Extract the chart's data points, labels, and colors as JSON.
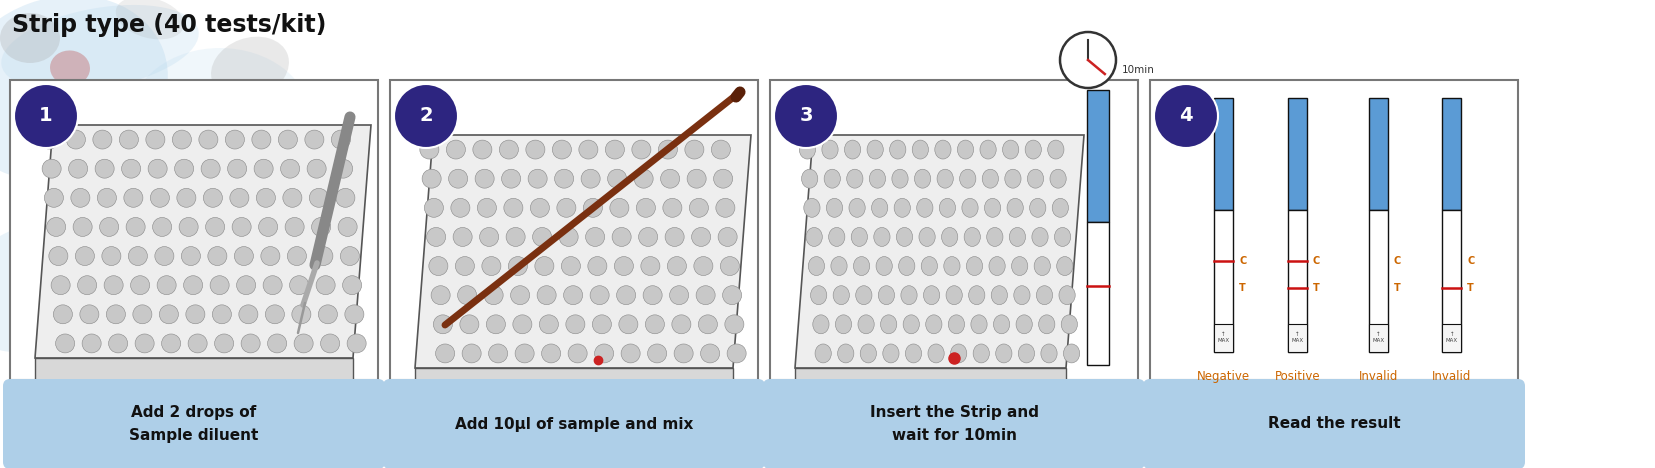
{
  "title": "Strip type (40 tests/kit)",
  "title_fontsize": 17,
  "title_color": "#111111",
  "background_color": "#ffffff",
  "step_labels": [
    "1",
    "2",
    "3",
    "4"
  ],
  "step_number_color": "#2d2580",
  "step_captions": [
    "Add 2 drops of\nSample diluent",
    "Add 10μl of sample and mix",
    "Insert the Strip and\nwait for 10min",
    "Read the result"
  ],
  "caption_box_color": "#aecfe8",
  "caption_text_color": "#111111",
  "box_border_color": "#777777",
  "step4_labels": [
    "Negative",
    "Positive",
    "Invalid",
    "Invalid"
  ],
  "step4_label_color": "#cc6600",
  "strip_blue_color": "#5b9bd5",
  "strip_red_color": "#cc1111",
  "strip_border_color": "#111111",
  "panel_bg": "#ffffff",
  "well_fill": "#c8c8c8",
  "well_edge": "#888888",
  "plate_fill": "#eeeeee",
  "plate_edge": "#555555"
}
